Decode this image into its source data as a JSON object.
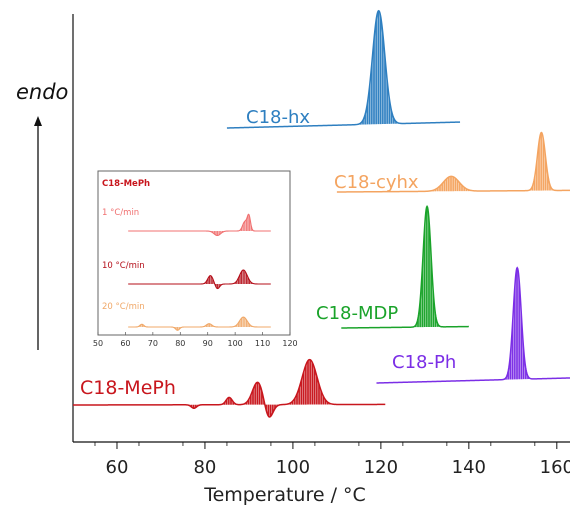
{
  "chart_data": {
    "type": "line",
    "xlabel": "Temperature / °C",
    "ylabel": "endo",
    "xlim": [
      50,
      163
    ],
    "xticks": [
      60,
      80,
      100,
      120,
      140,
      160
    ],
    "grid": false,
    "series": [
      {
        "name": "C18-hx",
        "color": "#2e7fc0",
        "x_range": [
          85,
          138
        ],
        "baseline_rise": 0.22,
        "peaks": [
          {
            "x": 119.5,
            "height": 4.2,
            "width": 1.4
          }
        ]
      },
      {
        "name": "C18-cyhx",
        "color": "#f4a460",
        "x_range": [
          110,
          163
        ],
        "baseline_rise": 0.06,
        "peaks": [
          {
            "x": 136,
            "height": 0.55,
            "width": 1.8
          },
          {
            "x": 156.5,
            "height": 2.15,
            "width": 0.9
          }
        ]
      },
      {
        "name": "C18-MDP",
        "color": "#1aa32a",
        "x_range": [
          111,
          140
        ],
        "baseline_rise": 0.04,
        "peaks": [
          {
            "x": 130.5,
            "height": 3.35,
            "width": 0.9
          }
        ]
      },
      {
        "name": "C18-Ph",
        "color": "#7b2ee6",
        "x_range": [
          119,
          163
        ],
        "baseline_rise": 0.14,
        "peaks": [
          {
            "x": 151,
            "height": 3.1,
            "width": 0.9
          }
        ]
      },
      {
        "name": "C18-MePh",
        "color": "#c8161d",
        "x_range": [
          50,
          121
        ],
        "baseline_rise": 0.02,
        "peaks": [
          {
            "x": 77.5,
            "height": -0.12,
            "width": 0.6
          },
          {
            "x": 85.5,
            "height": 0.25,
            "width": 0.7
          },
          {
            "x": 92,
            "height": 0.78,
            "width": 1.2
          },
          {
            "x": 94.5,
            "height": -0.5,
            "width": 0.9
          },
          {
            "x": 103.8,
            "height": 1.55,
            "width": 1.7
          }
        ]
      }
    ],
    "inset": {
      "title": "C18-MePh",
      "xlim": [
        50,
        120
      ],
      "xticks": [
        50,
        60,
        70,
        80,
        90,
        100,
        110,
        120
      ],
      "series": [
        {
          "name": "1 °C/min",
          "color": "#f07070",
          "peaks": [
            {
              "x": 93.5,
              "height": -0.3,
              "width": 1.2
            },
            {
              "x": 103.5,
              "height": 0.6,
              "width": 0.8
            },
            {
              "x": 105,
              "height": 1.0,
              "width": 0.6
            }
          ]
        },
        {
          "name": "10 °C/min",
          "color": "#b40f1a",
          "peaks": [
            {
              "x": 91,
              "height": 0.6,
              "width": 1.0
            },
            {
              "x": 93.5,
              "height": -0.35,
              "width": 0.8
            },
            {
              "x": 103,
              "height": 1.0,
              "width": 1.4
            }
          ]
        },
        {
          "name": "20 °C/min",
          "color": "#f0a868",
          "peaks": [
            {
              "x": 66,
              "height": 0.25,
              "width": 0.7
            },
            {
              "x": 79,
              "height": -0.3,
              "width": 0.7
            },
            {
              "x": 90.5,
              "height": 0.3,
              "width": 1.0
            },
            {
              "x": 103,
              "height": 0.9,
              "width": 1.4
            }
          ]
        }
      ]
    }
  }
}
